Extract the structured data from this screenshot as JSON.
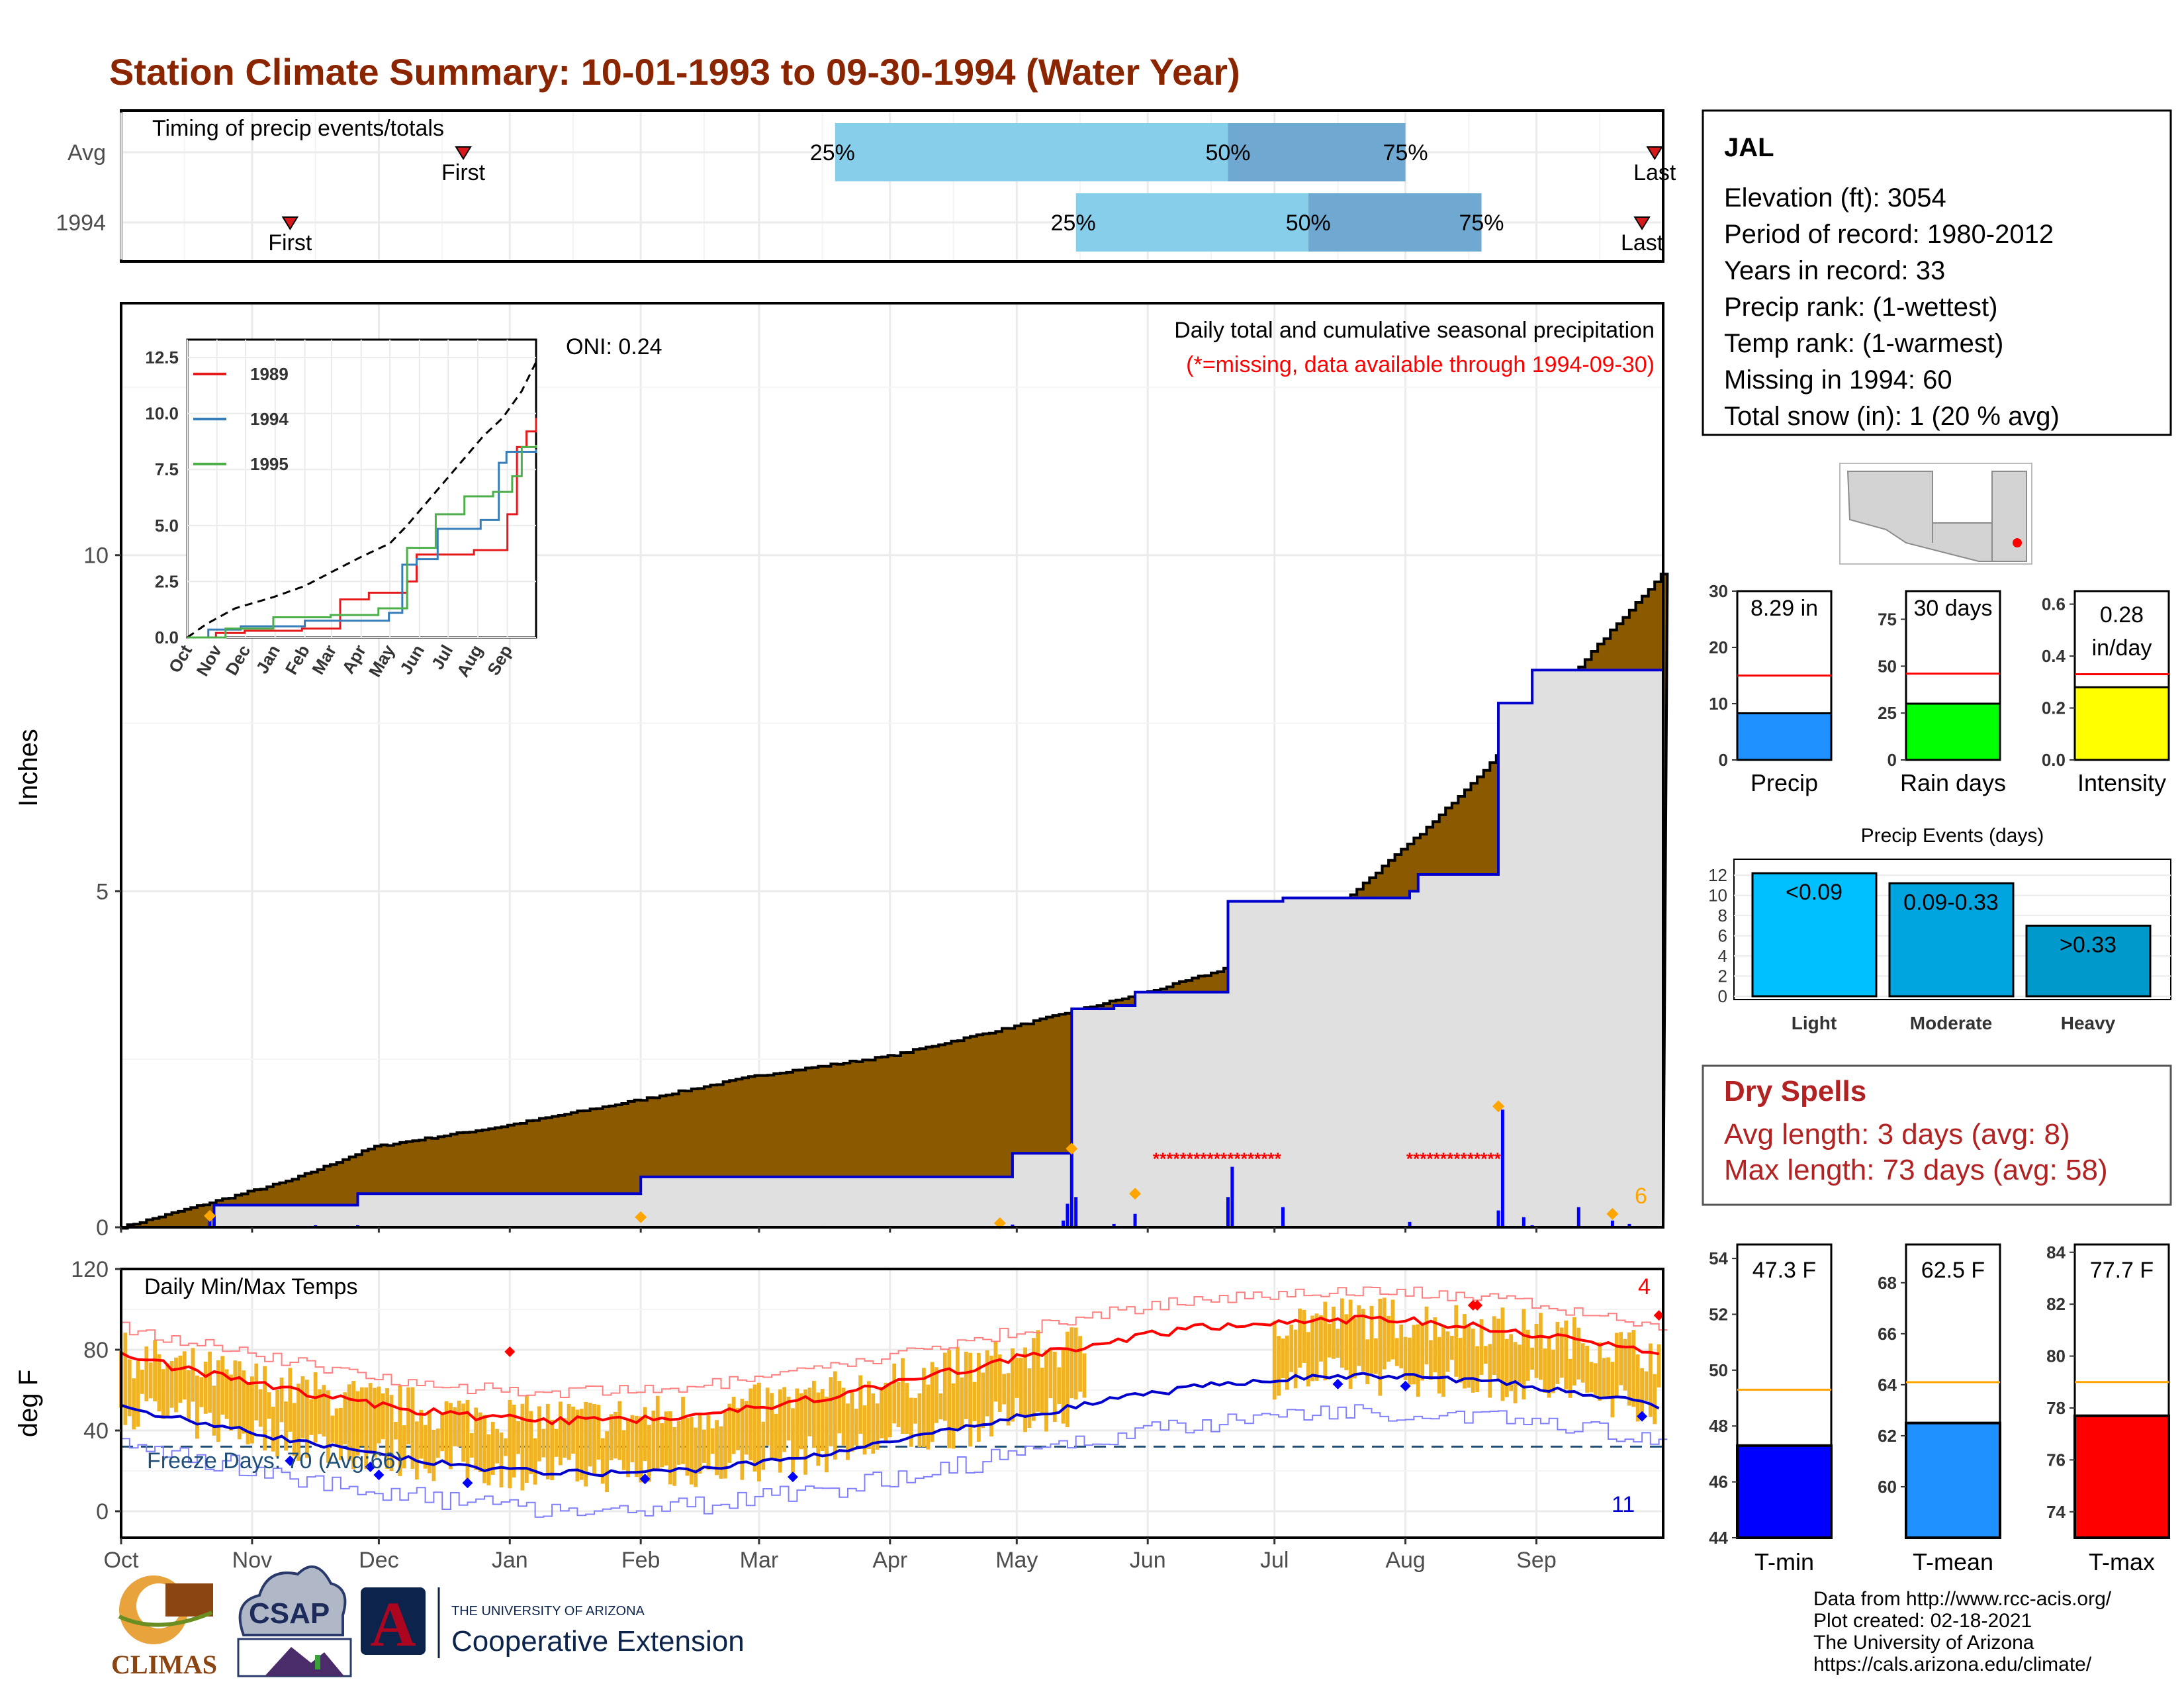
{
  "title": "Station Climate Summary: 10-01-1993 to 09-30-1994 (Water Year)",
  "timing": {
    "label": "Timing of precip events/totals",
    "rows": [
      {
        "name": "Avg",
        "first_label": "First",
        "last_label": "Last",
        "first_day": 81,
        "last_day": 363,
        "p25_day": 169,
        "p50_day": 262,
        "p75_day": 304,
        "p25_label": "25%",
        "p50_label": "50%",
        "p75_label": "75%"
      },
      {
        "name": "1994",
        "first_label": "First",
        "last_label": "Last",
        "first_day": 40,
        "last_day": 360,
        "p25_day": 226,
        "p50_day": 281,
        "p75_day": 322,
        "p25_label": "25%",
        "p50_label": "50%",
        "p75_label": "75%"
      }
    ],
    "colors": {
      "light": "#87ceeb",
      "dark": "#6fa8d0",
      "marker": "#d7191c"
    }
  },
  "precip_panel": {
    "ylabel": "Inches",
    "oni": "ONI: 0.24",
    "caption1": "Daily total and cumulative seasonal precipitation",
    "caption2": "(*=missing, data available through 1994-09-30)",
    "count_label": "6",
    "y_ticks": [
      "0",
      "5",
      "10"
    ],
    "colors": {
      "avg_fill": "#8b5a00",
      "year_fill": "#e0e0e0",
      "year_line": "#0000cd",
      "daily_bar": "#0000ff",
      "missing": "#ff0000",
      "highlight": "#ffa500"
    }
  },
  "inset": {
    "y_ticks": [
      "0.0",
      "2.5",
      "5.0",
      "7.5",
      "10.0",
      "12.5"
    ],
    "x_ticks": [
      "Oct",
      "Nov",
      "Dec",
      "Jan",
      "Feb",
      "Mar",
      "Apr",
      "May",
      "Jun",
      "Jul",
      "Aug",
      "Sep"
    ],
    "legend": [
      {
        "name": "1989",
        "color": "#e41a1c"
      },
      {
        "name": "1994",
        "color": "#377eb8"
      },
      {
        "name": "1995",
        "color": "#4daf4a"
      }
    ]
  },
  "temp_panel": {
    "label": "Daily Min/Max Temps",
    "ylabel": "deg F",
    "freeze": "Freeze Days: 70 (Avg:66)",
    "count_high": "4",
    "count_low": "11",
    "y_ticks": [
      "0",
      "40",
      "80",
      "120"
    ],
    "colors": {
      "bar": "#f0b323",
      "max_line": "#ff0000",
      "min_line": "#0000cd",
      "freeze_line": "#1f4e79"
    }
  },
  "x_months": [
    "Oct",
    "Nov",
    "Dec",
    "Jan",
    "Feb",
    "Mar",
    "Apr",
    "May",
    "Jun",
    "Jul",
    "Aug",
    "Sep"
  ],
  "station_box": {
    "name": "JAL",
    "lines": [
      "Elevation (ft): 3054",
      "Period of record: 1980-2012",
      "Years in record: 33",
      "Precip rank:  (1-wettest)",
      "Temp rank:  (1-warmest)",
      "Missing in 1994: 60",
      "Total snow (in): 1 (20 % avg)"
    ]
  },
  "gauges_precip": [
    {
      "name": "Precip",
      "value_label": "8.29 in",
      "value": 8.29,
      "avg": 15,
      "ticks": [
        0,
        10,
        20,
        30
      ],
      "max": 30,
      "color": "#1e90ff"
    },
    {
      "name": "Rain days",
      "value_label": "30 days",
      "value": 30,
      "avg": 46,
      "ticks": [
        0,
        25,
        50,
        75
      ],
      "max": 90,
      "color": "#00ff00"
    },
    {
      "name": "Intensity",
      "value_label": "0.28",
      "value_label2": "in/day",
      "value": 0.28,
      "avg": 0.33,
      "ticks": [
        0.0,
        0.2,
        0.4,
        0.6
      ],
      "max": 0.65,
      "color": "#ffff00"
    }
  ],
  "events": {
    "title": "Precip Events (days)",
    "ticks": [
      0,
      2,
      4,
      6,
      8,
      10,
      12
    ],
    "bars": [
      {
        "name": "Light",
        "label": "<0.09",
        "value": 12.2,
        "color": "#00bfff"
      },
      {
        "name": "Moderate",
        "label": "0.09-0.33",
        "value": 11.2,
        "color": "#00a5e0"
      },
      {
        "name": "Heavy",
        "label": ">0.33",
        "value": 7.0,
        "color": "#0099cc"
      }
    ]
  },
  "dry_spells": {
    "title": "Dry Spells",
    "avg": "Avg length: 3 days (avg: 8)",
    "max": "Max length: 73 days (avg: 58)"
  },
  "gauges_temp": [
    {
      "name": "T-min",
      "value_label": "47.3 F",
      "value": 47.3,
      "avg": 49.3,
      "min": 44,
      "max": 54.5,
      "ticks": [
        44,
        46,
        48,
        50,
        52,
        54
      ],
      "color": "#0000ff"
    },
    {
      "name": "T-mean",
      "value_label": "62.5 F",
      "value": 62.5,
      "avg": 64.1,
      "min": 58,
      "max": 69.5,
      "ticks": [
        60,
        62,
        64,
        66,
        68
      ],
      "color": "#1e90ff"
    },
    {
      "name": "T-max",
      "value_label": "77.7 F",
      "value": 77.7,
      "avg": 79,
      "min": 73,
      "max": 84.3,
      "ticks": [
        74,
        76,
        78,
        80,
        82,
        84
      ],
      "color": "#ff0000"
    }
  ],
  "footer": {
    "lines": [
      "Data from http://www.rcc-acis.org/",
      "Plot created: 02-18-2021",
      "The University of Arizona",
      "https://cals.arizona.edu/climate/"
    ],
    "climas": "CLIMAS",
    "csap": "CSAP",
    "ua_small": "THE UNIVERSITY OF ARIZONA",
    "ua_big": "Cooperative Extension",
    "ua_letter": "A"
  }
}
